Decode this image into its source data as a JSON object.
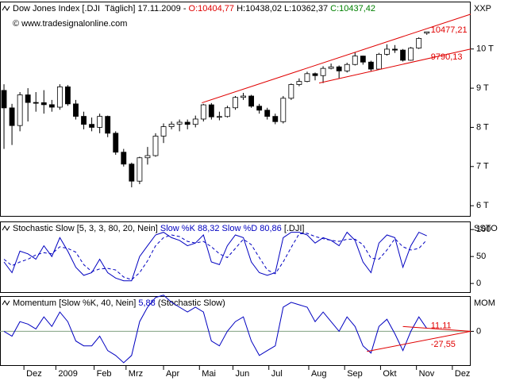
{
  "x_axis": {
    "xlim": [
      -0.5,
      58.5
    ],
    "xticks": [
      {
        "value": 2.5,
        "label": "Dez"
      },
      {
        "value": 6.5,
        "label": "2009"
      },
      {
        "value": 11.3,
        "label": "Feb"
      },
      {
        "value": 15.3,
        "label": "Mrz"
      },
      {
        "value": 20,
        "label": "Apr"
      },
      {
        "value": 24.5,
        "label": "Mai"
      },
      {
        "value": 28.7,
        "label": "Jun"
      },
      {
        "value": 33.2,
        "label": "Jul"
      },
      {
        "value": 38.2,
        "label": "Aug"
      },
      {
        "value": 42.7,
        "label": "Sep"
      },
      {
        "value": 47.2,
        "label": "Okt"
      },
      {
        "value": 51.7,
        "label": "Nov"
      },
      {
        "value": 56.2,
        "label": "Dez"
      }
    ]
  },
  "chart_data": [
    {
      "type": "candlestick",
      "title_parts": [
        {
          "text": "Dow Jones Index [.DJI  Täglich] 17.11.2009 - ",
          "color": "#000000"
        },
        {
          "text": "O:10404,77",
          "color": "#e00000"
        },
        {
          "text": " H:10438,02 L:10362,37 ",
          "color": "#000000"
        },
        {
          "text": "C:10437,42",
          "color": "#008000"
        }
      ],
      "watermark": "© www.tradesignalonline.com",
      "axis_name": "XXP",
      "ylim": [
        5740,
        11210
      ],
      "yticks": [
        {
          "value": 6000,
          "label": "6 T"
        },
        {
          "value": 7000,
          "label": "7 T"
        },
        {
          "value": 8000,
          "label": "8 T"
        },
        {
          "value": 9000,
          "label": "9 T"
        },
        {
          "value": 10000,
          "label": "10 T"
        }
      ],
      "open": [
        8943,
        8497,
        8046,
        8829,
        8635,
        8629,
        8579,
        8515,
        9034,
        8599,
        8281,
        8077,
        8000,
        8280,
        7850,
        7366,
        7062,
        6627,
        7224,
        7279,
        7776,
        8018,
        8083,
        8131,
        8076,
        8212,
        8575,
        8268,
        8277,
        8500,
        8764,
        8799,
        8540,
        8438,
        8280,
        8146,
        8743,
        9093,
        9172,
        9370,
        9321,
        9505,
        9544,
        9441,
        9605,
        9820,
        9666,
        9487,
        9865,
        9996,
        9972,
        9713,
        10023,
        10404.77
      ],
      "high": [
        9100,
        8600,
        8900,
        9000,
        8900,
        8950,
        8700,
        9100,
        9080,
        8700,
        8400,
        8250,
        8350,
        8300,
        7900,
        7450,
        7100,
        7250,
        7500,
        7850,
        8100,
        8150,
        8200,
        8200,
        8300,
        8600,
        8620,
        8400,
        8550,
        8800,
        8880,
        8830,
        8600,
        8500,
        8350,
        8800,
        9120,
        9250,
        9420,
        9400,
        9560,
        9630,
        9580,
        9650,
        9920,
        9830,
        9700,
        9900,
        10120,
        10100,
        10000,
        10050,
        10300,
        10438.02
      ],
      "low": [
        7450,
        7550,
        7900,
        8150,
        8400,
        8350,
        8400,
        8450,
        8550,
        8200,
        7950,
        7900,
        7850,
        7750,
        7300,
        7000,
        6470,
        6550,
        7050,
        7250,
        7600,
        7950,
        7900,
        7950,
        8000,
        8150,
        8200,
        8180,
        8250,
        8450,
        8700,
        8500,
        8350,
        8200,
        8080,
        8100,
        8700,
        9050,
        9150,
        9200,
        9130,
        9480,
        9250,
        9400,
        9580,
        9600,
        9430,
        9480,
        9830,
        9900,
        9680,
        9700,
        10000,
        10362.37
      ],
      "close": [
        8497,
        8046,
        8829,
        8635,
        8629,
        8579,
        8515,
        9034,
        8599,
        8281,
        8077,
        8000,
        8280,
        7850,
        7366,
        7062,
        6627,
        7224,
        7279,
        7776,
        8018,
        8083,
        8131,
        8076,
        8212,
        8575,
        8268,
        8277,
        8500,
        8764,
        8799,
        8540,
        8438,
        8280,
        8146,
        8743,
        9093,
        9172,
        9370,
        9321,
        9505,
        9544,
        9441,
        9605,
        9820,
        9666,
        9487,
        9865,
        9996,
        9972,
        9713,
        10023,
        10270,
        10437.42
      ],
      "up_color": "#ffffff",
      "down_color": "#000000",
      "outline_color": "#000000",
      "lines": [
        {
          "color": "#e00000",
          "x": [
            24.8,
            58.5
          ],
          "values": [
            8626,
            10889
          ]
        },
        {
          "color": "#e00000",
          "x": [
            39.5,
            58.5
          ],
          "values": [
            9131,
            10000
          ]
        }
      ],
      "annotations": [
        {
          "text": "10477,21",
          "x": 53.5,
          "value": 10477.21,
          "color": "#e00000"
        },
        {
          "text": "9790,13",
          "x": 53.5,
          "value": 9790.13,
          "color": "#e00000"
        }
      ]
    },
    {
      "type": "line",
      "title_parts": [
        {
          "text": "Stochastic Slow [5, 3, 3, 80, 20, Nein] ",
          "color": "#000000"
        },
        {
          "text": "Slow %K 88,32",
          "color": "#0000c0"
        },
        {
          "text": " Slow %D 80,86",
          "color": "#0000c0"
        },
        {
          "text": " [.DJI]",
          "color": "#000000"
        }
      ],
      "axis_name": "SSTO",
      "ylim": [
        -16,
        115
      ],
      "yticks": [
        0,
        50,
        100
      ],
      "series": [
        {
          "color": "#0000c0",
          "dash": false,
          "values": [
            40,
            20,
            60,
            55,
            45,
            70,
            50,
            85,
            60,
            30,
            15,
            20,
            45,
            20,
            10,
            5,
            5,
            50,
            70,
            90,
            95,
            85,
            80,
            70,
            75,
            90,
            40,
            35,
            70,
            90,
            85,
            40,
            20,
            15,
            20,
            85,
            95,
            95,
            90,
            75,
            85,
            80,
            70,
            95,
            80,
            40,
            20,
            75,
            90,
            85,
            30,
            70,
            95,
            88.32
          ]
        },
        {
          "color": "#0000c0",
          "dash": true,
          "values": [
            45,
            33,
            40,
            45,
            53,
            57,
            55,
            68,
            65,
            58,
            35,
            22,
            27,
            28,
            25,
            12,
            7,
            20,
            42,
            70,
            85,
            90,
            87,
            78,
            75,
            78,
            68,
            55,
            48,
            65,
            82,
            72,
            48,
            25,
            18,
            40,
            67,
            92,
            93,
            87,
            83,
            80,
            78,
            82,
            82,
            72,
            47,
            45,
            62,
            83,
            68,
            62,
            65,
            80.86
          ]
        }
      ]
    },
    {
      "type": "line",
      "title_parts": [
        {
          "text": "Momentum [Slow %K, 40, Nein] ",
          "color": "#000000"
        },
        {
          "text": "5,88",
          "color": "#0000c0"
        },
        {
          "text": " (Stochastic Slow)",
          "color": "#000000"
        }
      ],
      "axis_name": "MOM",
      "ylim": [
        -70,
        73
      ],
      "yticks": [
        0
      ],
      "zero_line_color": "#80a080",
      "series": [
        {
          "color": "#0000c0",
          "dash": false,
          "values": [
            0,
            -10,
            20,
            15,
            5,
            30,
            10,
            40,
            20,
            -20,
            -30,
            -30,
            -10,
            -40,
            -50,
            -65,
            -50,
            20,
            50,
            70,
            75,
            60,
            50,
            40,
            50,
            40,
            -20,
            -30,
            0,
            20,
            30,
            -20,
            -50,
            -40,
            -30,
            50,
            60,
            55,
            50,
            20,
            40,
            20,
            0,
            30,
            10,
            -30,
            -45,
            10,
            25,
            -5,
            -40,
            0,
            30,
            5.88
          ]
        }
      ],
      "lines": [
        {
          "color": "#e00000",
          "x": [
            45.5,
            58.5
          ],
          "values": [
            -41.7,
            0
          ]
        },
        {
          "color": "#e00000",
          "x": [
            50,
            58.5
          ],
          "values": [
            10,
            0
          ]
        }
      ],
      "annotations": [
        {
          "text": "11,11",
          "x": 53.5,
          "value": 11.11,
          "color": "#e00000"
        },
        {
          "text": "-27,55",
          "x": 53.5,
          "value": -27.55,
          "color": "#e00000"
        }
      ]
    }
  ]
}
